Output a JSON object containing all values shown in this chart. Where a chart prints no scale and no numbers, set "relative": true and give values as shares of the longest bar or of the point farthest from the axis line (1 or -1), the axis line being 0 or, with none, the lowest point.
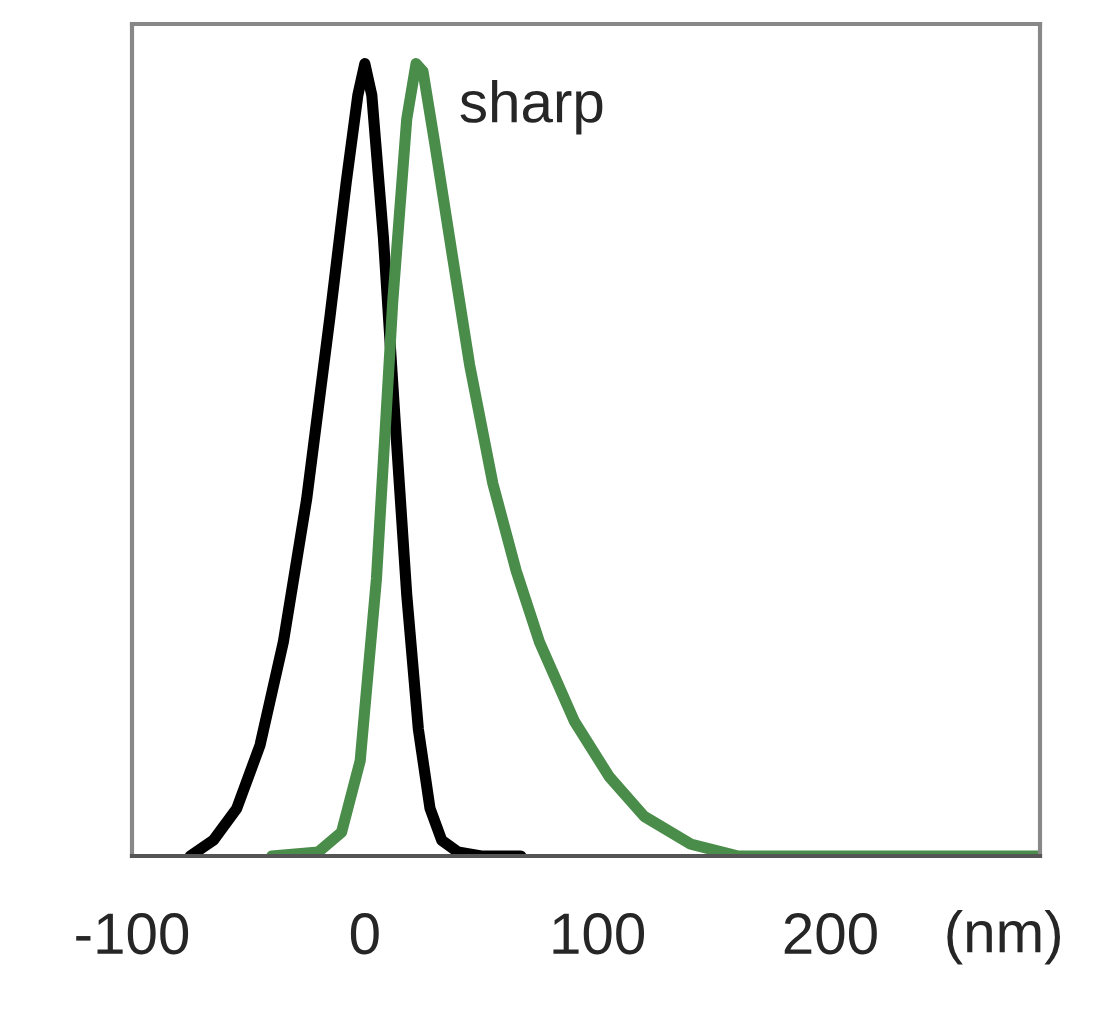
{
  "chart_data": {
    "type": "line",
    "relative": true,
    "xlabel": "(nm)",
    "xlim": [
      -100,
      290
    ],
    "xticks": [
      -100,
      0,
      100,
      200
    ],
    "annotations": [
      "sharp"
    ],
    "series": [
      {
        "color": "#000000",
        "x": [
          -75,
          -65,
          -55,
          -45,
          -35,
          -25,
          -15,
          -8,
          -3,
          0,
          3,
          8,
          13,
          18,
          23,
          28,
          33,
          40,
          50,
          67
        ],
        "values": [
          0,
          0.02,
          0.06,
          0.14,
          0.27,
          0.45,
          0.68,
          0.85,
          0.96,
          1,
          0.96,
          0.78,
          0.55,
          0.33,
          0.16,
          0.06,
          0.02,
          0.005,
          0,
          0
        ]
      },
      {
        "color": "#4a8c4a",
        "x": [
          -40,
          -20,
          -10,
          -2,
          5,
          12,
          18,
          22,
          25,
          30,
          38,
          45,
          55,
          65,
          75,
          90,
          105,
          120,
          140,
          160,
          200,
          290
        ],
        "values": [
          0,
          0.005,
          0.03,
          0.12,
          0.35,
          0.7,
          0.93,
          1,
          0.99,
          0.9,
          0.75,
          0.62,
          0.47,
          0.36,
          0.27,
          0.17,
          0.1,
          0.05,
          0.015,
          0,
          0,
          0
        ]
      }
    ],
    "grid": false,
    "legend": false
  }
}
